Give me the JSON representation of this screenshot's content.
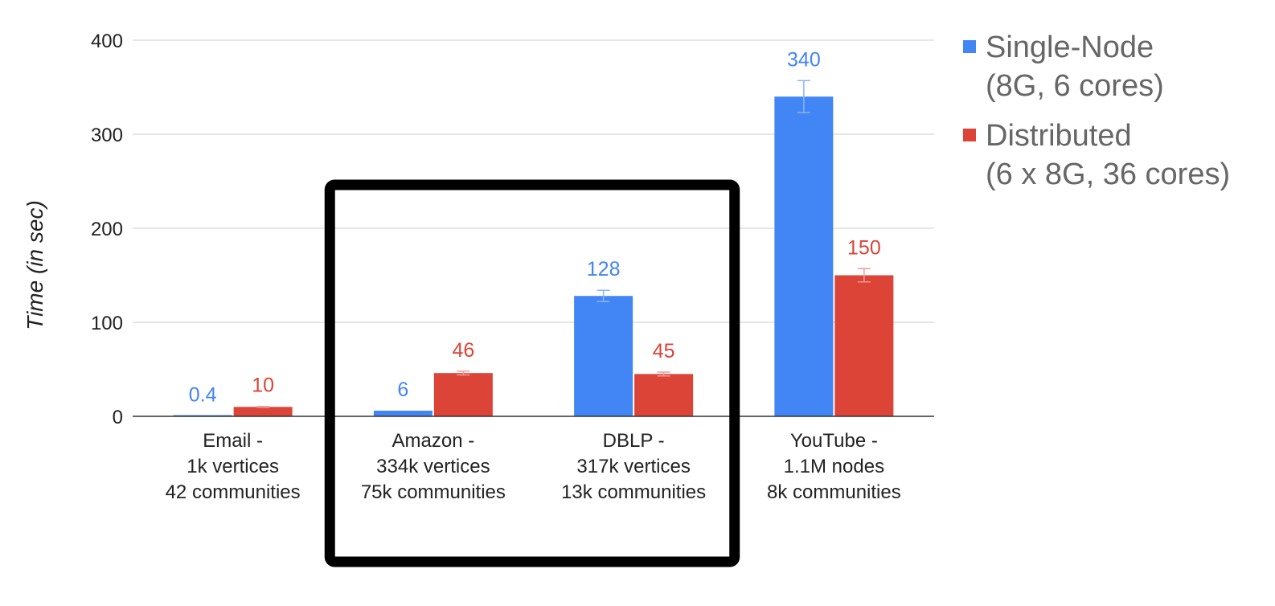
{
  "chart_data": {
    "type": "bar",
    "title": "",
    "xlabel": "",
    "ylabel": "Time (in sec)",
    "ylim": [
      0,
      400
    ],
    "yticks": [
      0,
      100,
      200,
      300,
      400
    ],
    "grid": true,
    "legend_position": "right",
    "categories": [
      [
        "Email -",
        "1k vertices",
        "42 communities"
      ],
      [
        "Amazon -",
        "334k vertices",
        "75k communities"
      ],
      [
        "DBLP -",
        "317k vertices",
        "13k communities"
      ],
      [
        "YouTube -",
        "1.1M nodes",
        "8k communities"
      ]
    ],
    "series": [
      {
        "name": [
          "Single-Node",
          "(8G, 6 cores)"
        ],
        "color": "#4285f4",
        "values": [
          0.4,
          6,
          128,
          340
        ],
        "labels": [
          "0.4",
          "6",
          "128",
          "340"
        ],
        "error": [
          0,
          0,
          6,
          17
        ]
      },
      {
        "name": [
          "Distributed",
          "(6 x 8G, 36 cores)"
        ],
        "color": "#db4437",
        "values": [
          10,
          46,
          45,
          150
        ],
        "labels": [
          "10",
          "46",
          "45",
          "150"
        ],
        "error": [
          0.5,
          2,
          2,
          7
        ]
      }
    ],
    "annotations": [
      {
        "type": "highlight-box",
        "covers_categories": [
          1,
          2
        ],
        "color": "#000000"
      }
    ]
  }
}
